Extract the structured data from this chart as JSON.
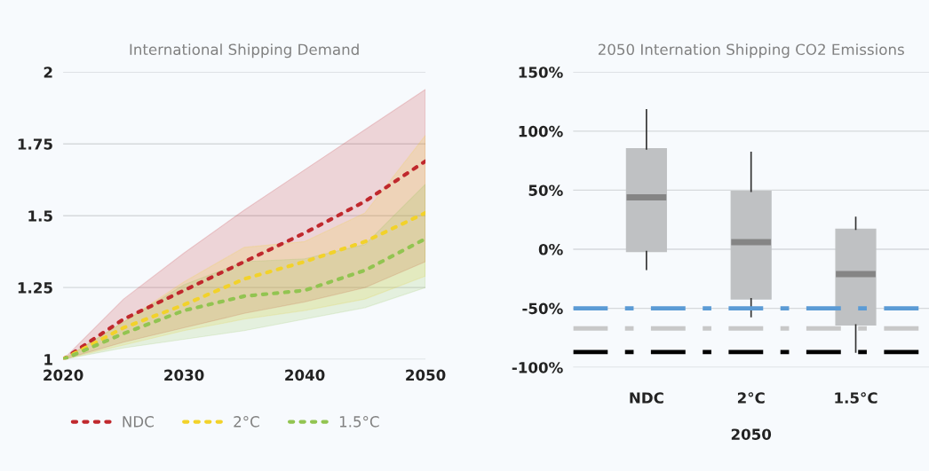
{
  "chart_data": [
    {
      "type": "line",
      "title": "International Shipping Demand",
      "x": [
        2020,
        2025,
        2030,
        2035,
        2040,
        2045,
        2050
      ],
      "xlim": [
        2020,
        2050
      ],
      "xticks": [
        2020,
        2030,
        2040,
        2050
      ],
      "ylim": [
        1,
        2
      ],
      "yticks": [
        1,
        1.25,
        1.5,
        1.75,
        2
      ],
      "grid": "y",
      "legend": "bottom",
      "marker": "none",
      "line_style": "dotted",
      "series": [
        {
          "name": "NDC",
          "color": "#c0282d",
          "values": [
            1,
            1.14,
            1.24,
            1.34,
            1.44,
            1.55,
            1.69
          ],
          "lower": [
            1,
            1.06,
            1.11,
            1.16,
            1.2,
            1.25,
            1.34
          ],
          "upper": [
            1,
            1.21,
            1.37,
            1.52,
            1.66,
            1.8,
            1.94
          ]
        },
        {
          "name": "2°C",
          "color": "#f2d22a",
          "values": [
            1,
            1.11,
            1.19,
            1.28,
            1.34,
            1.41,
            1.51
          ],
          "lower": [
            1,
            1.05,
            1.1,
            1.14,
            1.17,
            1.21,
            1.29
          ],
          "upper": [
            1,
            1.13,
            1.27,
            1.39,
            1.41,
            1.51,
            1.78
          ]
        },
        {
          "name": "1.5°C",
          "color": "#92c451",
          "values": [
            1,
            1.09,
            1.17,
            1.22,
            1.24,
            1.31,
            1.42
          ],
          "lower": [
            1,
            1.04,
            1.07,
            1.1,
            1.14,
            1.18,
            1.25
          ],
          "upper": [
            1,
            1.13,
            1.26,
            1.34,
            1.35,
            1.4,
            1.61
          ]
        }
      ]
    },
    {
      "type": "box",
      "title": "2050 Internation Shipping CO2 Emissions",
      "xlabel": "2050",
      "categories": [
        "NDC",
        "2°C",
        "1.5°C"
      ],
      "ylim": [
        -100,
        150
      ],
      "yticks": [
        {
          "value": -100,
          "label": "-100%"
        },
        {
          "value": -50,
          "label": "-50%"
        },
        {
          "value": 0,
          "label": "0%"
        },
        {
          "value": 50,
          "label": "50%"
        },
        {
          "value": 100,
          "label": "100%"
        },
        {
          "value": 150,
          "label": "150%"
        }
      ],
      "grid": "y",
      "color": "#bfc1c3",
      "boxes": [
        {
          "low": -17,
          "q1": -2,
          "median": 44,
          "q3": 85,
          "high": 118
        },
        {
          "low": -57,
          "q1": -42,
          "median": 6,
          "q3": 49,
          "high": 82
        },
        {
          "low": -87,
          "q1": -64,
          "median": -21,
          "q3": 17,
          "high": 27
        }
      ],
      "ref_lines": [
        {
          "axis": "y",
          "value": -50,
          "color": "#5b9bd5",
          "line_style": "dashdot"
        },
        {
          "axis": "y",
          "value": -67,
          "color": "#c8c8c8",
          "line_style": "dashdot"
        },
        {
          "axis": "y",
          "value": -87,
          "color": "#000000",
          "line_style": "dashdot"
        }
      ]
    }
  ]
}
